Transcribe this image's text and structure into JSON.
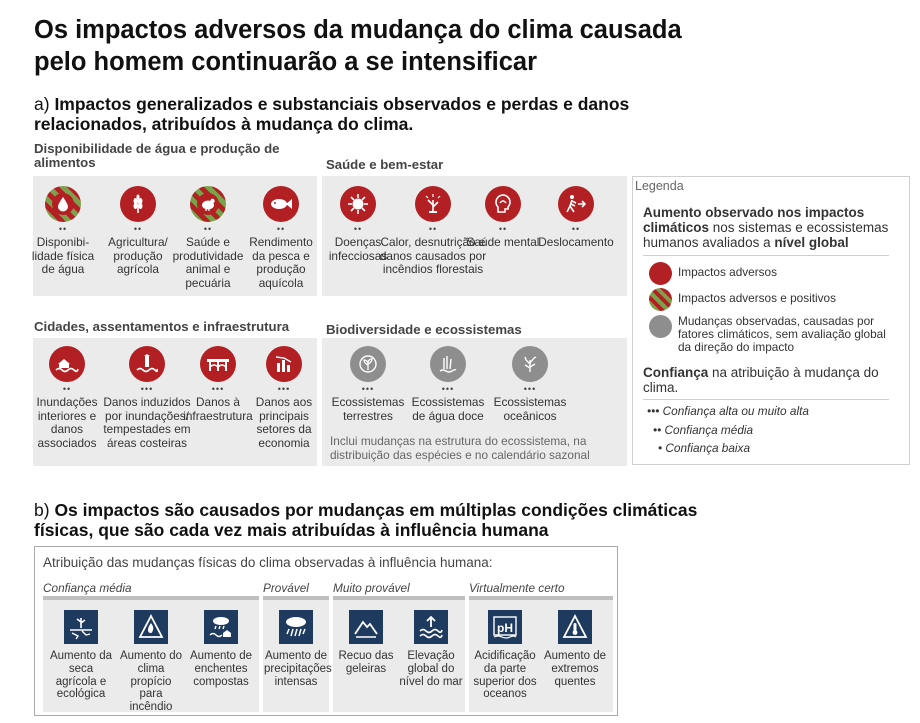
{
  "title": "Os impactos adversos da mudança do clima causada pelo homem continuarão a se intensificar",
  "section_a": {
    "prefix": "a)",
    "title": "Impactos generalizados e substanciais observados e perdas e danos relacionados, atribuídos à mudança do clima.",
    "categories": [
      {
        "title": "Disponibilidade de água e produção de alimentos",
        "items": [
          {
            "label": "Disponibi-lidade física de água",
            "confidence": "••",
            "type": "mixed",
            "icon": "water-drop-icon"
          },
          {
            "label": "Agricultura/ produção agrícola",
            "confidence": "••",
            "type": "adverse",
            "icon": "wheat-icon"
          },
          {
            "label": "Saúde e produtividade animal e pecuária",
            "confidence": "••",
            "type": "mixed",
            "icon": "chicken-icon"
          },
          {
            "label": "Rendimento da pesca e produção aquícola",
            "confidence": "••",
            "type": "adverse",
            "icon": "fish-icon"
          }
        ]
      },
      {
        "title": "Saúde e bem-estar",
        "items": [
          {
            "label": "Doenças infecciosas",
            "confidence": "••",
            "type": "adverse",
            "icon": "virus-icon"
          },
          {
            "label": "Calor, desnutrição e danos causados por incêndios florestais",
            "confidence": "••",
            "type": "adverse",
            "icon": "heat-plant-icon"
          },
          {
            "label": "Saúde mental",
            "confidence": "••",
            "type": "adverse",
            "icon": "mental-health-icon"
          },
          {
            "label": "Deslocamento",
            "confidence": "••",
            "type": "adverse",
            "icon": "displacement-icon"
          }
        ]
      },
      {
        "title": "Cidades, assentamentos e infraestrutura",
        "items": [
          {
            "label": "Inundações interiores e danos associados",
            "confidence": "••",
            "type": "adverse",
            "icon": "inland-flood-icon"
          },
          {
            "label": "Danos induzidos por inundações/ tempestades em áreas costeiras",
            "confidence": "•••",
            "type": "adverse",
            "icon": "coastal-flood-icon"
          },
          {
            "label": "Danos à infraestrutura",
            "confidence": "•••",
            "type": "adverse",
            "icon": "infrastructure-icon"
          },
          {
            "label": "Danos aos principais setores da economia",
            "confidence": "•••",
            "type": "adverse",
            "icon": "economy-icon"
          }
        ]
      },
      {
        "title": "Biodiversidade e ecossistemas",
        "items": [
          {
            "label": "Ecossistemas terrestres",
            "confidence": "•••",
            "type": "grey",
            "icon": "terrestrial-ecosystem-icon"
          },
          {
            "label": "Ecossistemas de água doce",
            "confidence": "•••",
            "type": "grey",
            "icon": "freshwater-ecosystem-icon"
          },
          {
            "label": "Ecossistemas oceânicos",
            "confidence": "•••",
            "type": "grey",
            "icon": "ocean-ecosystem-icon"
          }
        ],
        "note": "Inclui mudanças na estrutura do ecossistema, na distribuição das espécies e no calendário sazonal"
      }
    ]
  },
  "legend": {
    "title": "Legenda",
    "observed_head_bold1": "Aumento observado nos impactos climáticos",
    "observed_head_rest": " nos sistemas e ecossistemas humanos avaliados a ",
    "observed_head_bold2": "nível global",
    "items": [
      {
        "label": "Impactos adversos",
        "type": "adverse"
      },
      {
        "label": "Impactos adversos e positivos",
        "type": "mixed"
      },
      {
        "label": "Mudanças observadas, causadas por fatores climáticos, sem avaliação global da direção do impacto",
        "type": "grey"
      }
    ],
    "confidence_head_bold": "Confiança",
    "confidence_head_rest": " na atribuição à mudança do clima.",
    "confidence_levels": [
      "••• Confiança alta ou muito alta",
      "•• Confiança média",
      "• Confiança baixa"
    ]
  },
  "section_b": {
    "prefix": "b)",
    "title": "Os impactos são causados por mudanças em múltiplas condições climáticas físicas, que são cada vez mais atribuídas à influência humana",
    "box_header": "Atribuição das mudanças físicas do clima observadas à influência humana:",
    "groups": [
      {
        "label": "Confiança média",
        "items": [
          {
            "label": "Aumento da seca agrícola e ecológica",
            "icon": "drought-icon"
          },
          {
            "label": "Aumento do clima propício para incêndio",
            "icon": "fire-weather-icon"
          },
          {
            "label": "Aumento de enchentes compostas",
            "icon": "compound-flood-icon"
          }
        ]
      },
      {
        "label": "Provável",
        "items": [
          {
            "label": "Aumento de precipitações intensas",
            "icon": "heavy-rain-icon"
          }
        ]
      },
      {
        "label": "Muito provável",
        "items": [
          {
            "label": "Recuo das geleiras",
            "icon": "glacier-icon"
          },
          {
            "label": "Elevação global do nível do mar",
            "icon": "sea-level-icon"
          }
        ]
      },
      {
        "label": "Virtualmente certo",
        "items": [
          {
            "label": "Acidificação da parte superior dos oceanos",
            "icon": "ph-icon"
          },
          {
            "label": "Aumento de extremos quentes",
            "icon": "hot-extremes-icon"
          }
        ]
      }
    ]
  },
  "colors": {
    "adverse": "#b22024",
    "positive": "#7aa24b",
    "grey": "#8e8e8e",
    "icon_square": "#1e3a5f",
    "panel": "#ebebeb"
  }
}
